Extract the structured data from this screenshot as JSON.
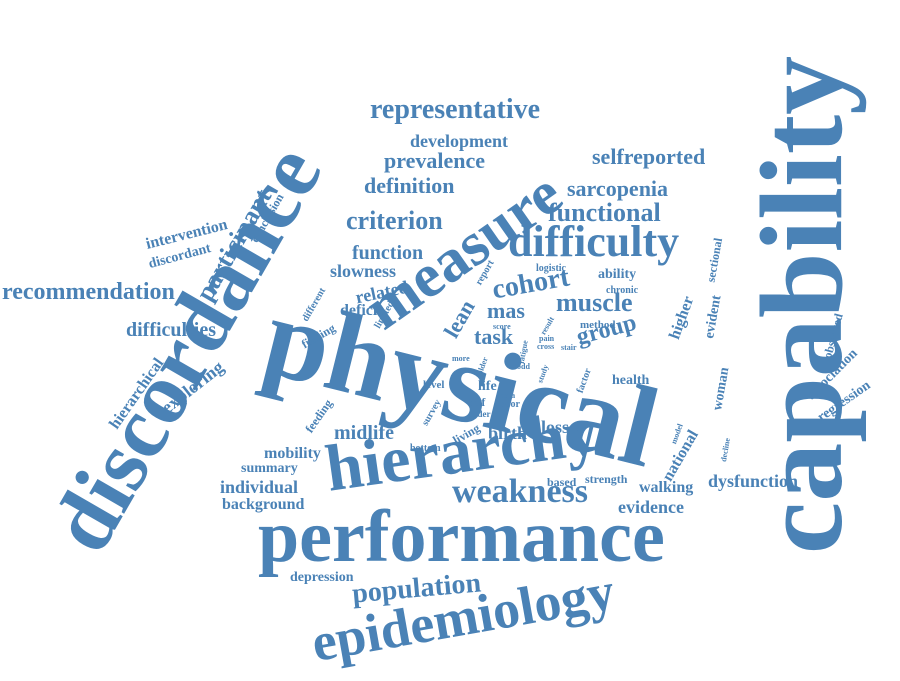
{
  "colors": {
    "word": "#4a82b6",
    "background": "#ffffff"
  },
  "words": {
    "capability": "capability",
    "physical": "physical",
    "discordance": "discordance",
    "performance": "performance",
    "hierarchy": "hierarchy",
    "measure": "measure",
    "epidemiology": "epidemiology",
    "difficulty": "difficulty",
    "weakness": "weakness",
    "representative": "representative",
    "recommendation": "recommendation",
    "participant": "participant",
    "population": "population",
    "criterion": "criterion",
    "functional": "functional",
    "cohort": "cohort",
    "muscle": "muscle",
    "group": "group",
    "lean": "lean",
    "task": "task",
    "mas": "mas",
    "prevalence": "prevalence",
    "definition": "definition",
    "development": "development",
    "selfreported": "selfreported",
    "sarcopenia": "sarcopenia",
    "function": "function",
    "slowness": "slowness",
    "related": "related",
    "deficit": "deficit",
    "difficulties": "difficulties",
    "intervention": "intervention",
    "discordant": "discordant",
    "conclusion": "conclusion",
    "exploring": "exploring",
    "hierarchical": "hierarchical",
    "midlife": "midlife",
    "birth": "birth",
    "loss": "loss",
    "mobility": "mobility",
    "summary": "summary",
    "individual": "individual",
    "background": "background",
    "depression": "depression",
    "based": "based",
    "strength": "strength",
    "walking": "walking",
    "dysfunction": "dysfunction",
    "evidence": "evidence",
    "national": "national",
    "woman": "woman",
    "health": "health",
    "higher": "higher",
    "evident": "evident",
    "ability": "ability",
    "chronic": "chronic",
    "logistic": "logistic",
    "sectional": "sectional",
    "observed": "observed",
    "association": "association",
    "regression": "regression",
    "report": "report",
    "different": "different",
    "limited": "limited",
    "finding": "finding",
    "feeding": "feeding",
    "survey": "survey",
    "living": "living",
    "bottom": "bottom",
    "level": "level",
    "life": "life",
    "self": "self",
    "data": "data",
    "poor": "poor",
    "order": "order",
    "more": "more",
    "older": "older",
    "odd": "odd",
    "study": "study",
    "factor": "factor",
    "method": "method",
    "score": "score",
    "result": "result",
    "pain": "pain",
    "cross": "cross",
    "stair": "stair",
    "model": "model",
    "decline": "decline",
    "fatigue": "fatigue"
  }
}
